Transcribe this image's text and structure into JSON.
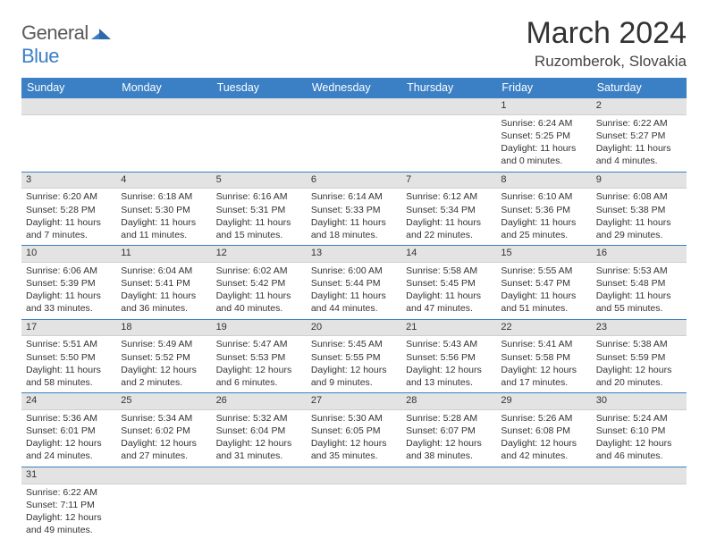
{
  "logo": {
    "general": "General",
    "blue": "Blue"
  },
  "title": "March 2024",
  "location": "Ruzomberok, Slovakia",
  "colors": {
    "header_bg": "#3b7fc4",
    "header_text": "#ffffff",
    "daynum_bg": "#e3e3e3",
    "text": "#333333",
    "logo_gray": "#5a5a5a",
    "logo_blue": "#3b7fc4"
  },
  "dayNames": [
    "Sunday",
    "Monday",
    "Tuesday",
    "Wednesday",
    "Thursday",
    "Friday",
    "Saturday"
  ],
  "weeks": [
    [
      {
        "n": "",
        "lines": []
      },
      {
        "n": "",
        "lines": []
      },
      {
        "n": "",
        "lines": []
      },
      {
        "n": "",
        "lines": []
      },
      {
        "n": "",
        "lines": []
      },
      {
        "n": "1",
        "lines": [
          "Sunrise: 6:24 AM",
          "Sunset: 5:25 PM",
          "Daylight: 11 hours and 0 minutes."
        ]
      },
      {
        "n": "2",
        "lines": [
          "Sunrise: 6:22 AM",
          "Sunset: 5:27 PM",
          "Daylight: 11 hours and 4 minutes."
        ]
      }
    ],
    [
      {
        "n": "3",
        "lines": [
          "Sunrise: 6:20 AM",
          "Sunset: 5:28 PM",
          "Daylight: 11 hours and 7 minutes."
        ]
      },
      {
        "n": "4",
        "lines": [
          "Sunrise: 6:18 AM",
          "Sunset: 5:30 PM",
          "Daylight: 11 hours and 11 minutes."
        ]
      },
      {
        "n": "5",
        "lines": [
          "Sunrise: 6:16 AM",
          "Sunset: 5:31 PM",
          "Daylight: 11 hours and 15 minutes."
        ]
      },
      {
        "n": "6",
        "lines": [
          "Sunrise: 6:14 AM",
          "Sunset: 5:33 PM",
          "Daylight: 11 hours and 18 minutes."
        ]
      },
      {
        "n": "7",
        "lines": [
          "Sunrise: 6:12 AM",
          "Sunset: 5:34 PM",
          "Daylight: 11 hours and 22 minutes."
        ]
      },
      {
        "n": "8",
        "lines": [
          "Sunrise: 6:10 AM",
          "Sunset: 5:36 PM",
          "Daylight: 11 hours and 25 minutes."
        ]
      },
      {
        "n": "9",
        "lines": [
          "Sunrise: 6:08 AM",
          "Sunset: 5:38 PM",
          "Daylight: 11 hours and 29 minutes."
        ]
      }
    ],
    [
      {
        "n": "10",
        "lines": [
          "Sunrise: 6:06 AM",
          "Sunset: 5:39 PM",
          "Daylight: 11 hours and 33 minutes."
        ]
      },
      {
        "n": "11",
        "lines": [
          "Sunrise: 6:04 AM",
          "Sunset: 5:41 PM",
          "Daylight: 11 hours and 36 minutes."
        ]
      },
      {
        "n": "12",
        "lines": [
          "Sunrise: 6:02 AM",
          "Sunset: 5:42 PM",
          "Daylight: 11 hours and 40 minutes."
        ]
      },
      {
        "n": "13",
        "lines": [
          "Sunrise: 6:00 AM",
          "Sunset: 5:44 PM",
          "Daylight: 11 hours and 44 minutes."
        ]
      },
      {
        "n": "14",
        "lines": [
          "Sunrise: 5:58 AM",
          "Sunset: 5:45 PM",
          "Daylight: 11 hours and 47 minutes."
        ]
      },
      {
        "n": "15",
        "lines": [
          "Sunrise: 5:55 AM",
          "Sunset: 5:47 PM",
          "Daylight: 11 hours and 51 minutes."
        ]
      },
      {
        "n": "16",
        "lines": [
          "Sunrise: 5:53 AM",
          "Sunset: 5:48 PM",
          "Daylight: 11 hours and 55 minutes."
        ]
      }
    ],
    [
      {
        "n": "17",
        "lines": [
          "Sunrise: 5:51 AM",
          "Sunset: 5:50 PM",
          "Daylight: 11 hours and 58 minutes."
        ]
      },
      {
        "n": "18",
        "lines": [
          "Sunrise: 5:49 AM",
          "Sunset: 5:52 PM",
          "Daylight: 12 hours and 2 minutes."
        ]
      },
      {
        "n": "19",
        "lines": [
          "Sunrise: 5:47 AM",
          "Sunset: 5:53 PM",
          "Daylight: 12 hours and 6 minutes."
        ]
      },
      {
        "n": "20",
        "lines": [
          "Sunrise: 5:45 AM",
          "Sunset: 5:55 PM",
          "Daylight: 12 hours and 9 minutes."
        ]
      },
      {
        "n": "21",
        "lines": [
          "Sunrise: 5:43 AM",
          "Sunset: 5:56 PM",
          "Daylight: 12 hours and 13 minutes."
        ]
      },
      {
        "n": "22",
        "lines": [
          "Sunrise: 5:41 AM",
          "Sunset: 5:58 PM",
          "Daylight: 12 hours and 17 minutes."
        ]
      },
      {
        "n": "23",
        "lines": [
          "Sunrise: 5:38 AM",
          "Sunset: 5:59 PM",
          "Daylight: 12 hours and 20 minutes."
        ]
      }
    ],
    [
      {
        "n": "24",
        "lines": [
          "Sunrise: 5:36 AM",
          "Sunset: 6:01 PM",
          "Daylight: 12 hours and 24 minutes."
        ]
      },
      {
        "n": "25",
        "lines": [
          "Sunrise: 5:34 AM",
          "Sunset: 6:02 PM",
          "Daylight: 12 hours and 27 minutes."
        ]
      },
      {
        "n": "26",
        "lines": [
          "Sunrise: 5:32 AM",
          "Sunset: 6:04 PM",
          "Daylight: 12 hours and 31 minutes."
        ]
      },
      {
        "n": "27",
        "lines": [
          "Sunrise: 5:30 AM",
          "Sunset: 6:05 PM",
          "Daylight: 12 hours and 35 minutes."
        ]
      },
      {
        "n": "28",
        "lines": [
          "Sunrise: 5:28 AM",
          "Sunset: 6:07 PM",
          "Daylight: 12 hours and 38 minutes."
        ]
      },
      {
        "n": "29",
        "lines": [
          "Sunrise: 5:26 AM",
          "Sunset: 6:08 PM",
          "Daylight: 12 hours and 42 minutes."
        ]
      },
      {
        "n": "30",
        "lines": [
          "Sunrise: 5:24 AM",
          "Sunset: 6:10 PM",
          "Daylight: 12 hours and 46 minutes."
        ]
      }
    ],
    [
      {
        "n": "31",
        "lines": [
          "Sunrise: 6:22 AM",
          "Sunset: 7:11 PM",
          "Daylight: 12 hours and 49 minutes."
        ]
      },
      {
        "n": "",
        "lines": []
      },
      {
        "n": "",
        "lines": []
      },
      {
        "n": "",
        "lines": []
      },
      {
        "n": "",
        "lines": []
      },
      {
        "n": "",
        "lines": []
      },
      {
        "n": "",
        "lines": []
      }
    ]
  ]
}
